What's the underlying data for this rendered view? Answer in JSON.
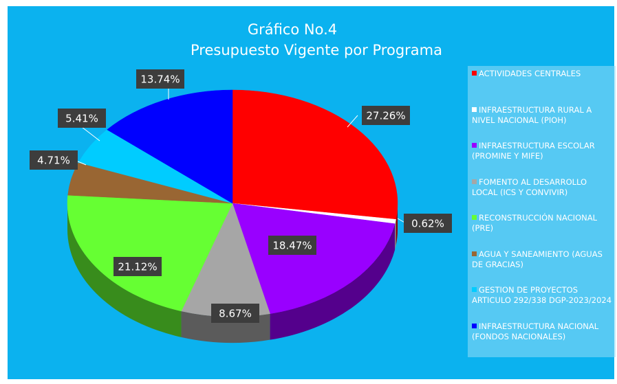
{
  "chart_data": {
    "type": "pie",
    "title": "Gráfico No.4",
    "subtitle": "Presupuesto Vigente por Programa",
    "categories": [
      "ACTIVIDADES CENTRALES",
      "INFRAESTRUCTURA RURAL A NIVEL NACIONAL (PIOH)",
      "INFRAESTRUCTURA ESCOLAR (PROMINE Y MIFE)",
      "FOMENTO AL DESARROLLO LOCAL (ICS Y CONVIVIR)",
      "RECONSTRUCCIÓN NACIONAL (PRE)",
      "AGUA Y SANEAMIENTO (AGUAS DE GRACIAS)",
      "GESTION DE PROYECTOS ARTICULO 292/338 DGP-2023/2024",
      "INFRAESTRUCTURA NACIONAL (FONDOS NACIONALES)"
    ],
    "values": [
      27.26,
      0.62,
      18.47,
      8.67,
      21.12,
      4.71,
      5.41,
      13.74
    ],
    "value_labels": [
      "27.26%",
      "0.62%",
      "18.47%",
      "8.67%",
      "21.12%",
      "4.71%",
      "5.41%",
      "13.74%"
    ],
    "colors": [
      "#ff0000",
      "#ffffff",
      "#9900ff",
      "#a6a6a6",
      "#66ff33",
      "#996633",
      "#00ccff",
      "#0000ff"
    ],
    "legend": "right"
  }
}
